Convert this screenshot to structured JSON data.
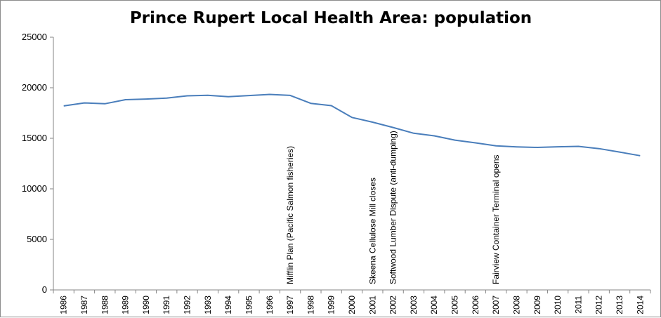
{
  "chart_data": {
    "type": "line",
    "title": "Prince Rupert Local Health Area: population",
    "xlabel": "",
    "ylabel": "",
    "ylim": [
      0,
      25000
    ],
    "yticks": [
      0,
      5000,
      10000,
      15000,
      20000,
      25000
    ],
    "grid": false,
    "legend": "none",
    "line_color": "#4a7ebb",
    "categories": [
      "1986",
      "1987",
      "1988",
      "1989",
      "1990",
      "1991",
      "1992",
      "1993",
      "1994",
      "1995",
      "1996",
      "1997",
      "1998",
      "1999",
      "2000",
      "2001",
      "2002",
      "2003",
      "2004",
      "2005",
      "2006",
      "2007",
      "2008",
      "2009",
      "2010",
      "2011",
      "2012",
      "2013",
      "2014"
    ],
    "series": [
      {
        "values": [
          18200,
          18500,
          18420,
          18820,
          18880,
          18980,
          19200,
          19250,
          19120,
          19230,
          19340,
          19240,
          18460,
          18230,
          17060,
          16600,
          16070,
          15500,
          15240,
          14820,
          14550,
          14250,
          14150,
          14100,
          14160,
          14200,
          13980,
          13640,
          13280
        ]
      }
    ],
    "annotations": [
      {
        "x": "1997",
        "text": "Mifflin Plan (Pacific Salmon fisheries)"
      },
      {
        "x": "2001",
        "text": "Skeena Cellulose Mill closes"
      },
      {
        "x": "2002",
        "text": "Softwood Lumber Dispute (anti-dumping)"
      },
      {
        "x": "2007",
        "text": "Fairview Container Terminal opens"
      }
    ]
  }
}
